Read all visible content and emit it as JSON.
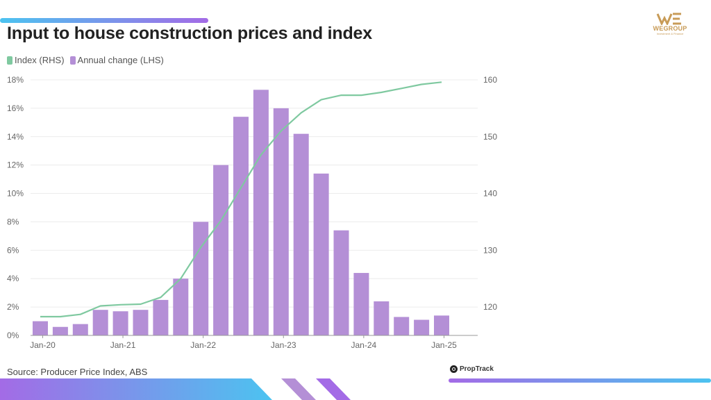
{
  "title": "Input to house construction prices and index",
  "legend": {
    "index_label": "Index (RHS)",
    "change_label": "Annual change (LHS)"
  },
  "colors": {
    "index": "#7fc9a0",
    "change": "#b48fd6"
  },
  "source": "Source: Producer Price Index, ABS",
  "proptrack_label": "PropTrack",
  "logo": {
    "name": "WEGROUP",
    "tagline": "Investment & Finance"
  },
  "chart_data": {
    "type": "bar",
    "title": "Input to house construction prices and index",
    "x_tick_labels": [
      "Jan-20",
      "Jan-21",
      "Jan-22",
      "Jan-23",
      "Jan-24",
      "Jan-25"
    ],
    "x_tick_quarter_index": [
      0.5,
      4.5,
      8.5,
      12.5,
      16.5,
      20.5
    ],
    "left_axis": {
      "ylim": [
        0,
        18
      ],
      "ticks": [
        0,
        2,
        4,
        6,
        8,
        10,
        12,
        14,
        16,
        18
      ],
      "unit": "%"
    },
    "right_axis": {
      "ylim": [
        115,
        160
      ],
      "ticks": [
        120,
        130,
        140,
        150,
        160
      ]
    },
    "grid": true,
    "series": [
      {
        "name": "Annual change (LHS)",
        "axis": "left",
        "kind": "bar",
        "values": [
          1.0,
          0.6,
          0.8,
          1.8,
          1.7,
          1.8,
          2.5,
          4.0,
          8.0,
          12.0,
          15.4,
          17.3,
          16.0,
          14.2,
          11.4,
          7.4,
          4.4,
          2.4,
          1.3,
          1.1,
          1.4
        ]
      },
      {
        "name": "Index (RHS)",
        "axis": "right",
        "kind": "line",
        "values": [
          118.3,
          118.3,
          118.7,
          120.2,
          120.4,
          120.5,
          121.7,
          125.0,
          130.5,
          135.2,
          141.0,
          146.8,
          151.0,
          154.2,
          156.5,
          157.3,
          157.3,
          157.8,
          158.5,
          159.2,
          159.6
        ]
      }
    ]
  }
}
